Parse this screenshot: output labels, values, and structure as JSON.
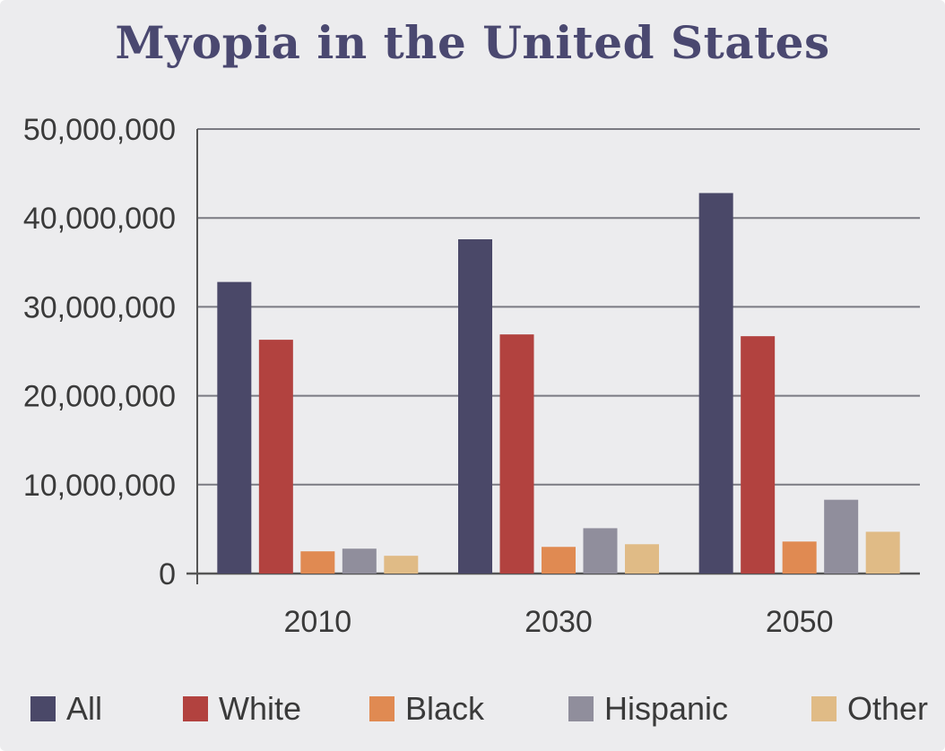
{
  "chart_data": {
    "type": "bar",
    "title": "Myopia in the United States",
    "categories": [
      "2010",
      "2030",
      "2050"
    ],
    "series": [
      {
        "name": "All",
        "color": "#4a4868",
        "values": [
          32800000,
          37600000,
          42800000
        ]
      },
      {
        "name": "White",
        "color": "#b2423f",
        "values": [
          26300000,
          26900000,
          26700000
        ]
      },
      {
        "name": "Black",
        "color": "#e08a52",
        "values": [
          2500000,
          3000000,
          3600000
        ]
      },
      {
        "name": "Hispanic",
        "color": "#908e9c",
        "values": [
          2800000,
          5100000,
          8300000
        ]
      },
      {
        "name": "Other",
        "color": "#e0bb86",
        "values": [
          2000000,
          3300000,
          4700000
        ]
      }
    ],
    "y_ticks": [
      "0",
      "10,000,000",
      "20,000,000",
      "30,000,000",
      "40,000,000",
      "50,000,000"
    ],
    "ylim": [
      0,
      50000000
    ],
    "xlabel": "",
    "ylabel": "",
    "grid": true,
    "legend_position": "bottom"
  }
}
